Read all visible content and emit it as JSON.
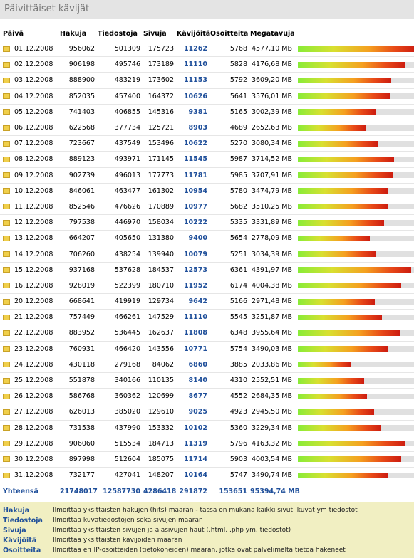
{
  "title": "Päivittäiset kävijät",
  "headers": [
    "Päivä",
    "Hakuja",
    "Tiedostoja",
    "Sivuja",
    "Kävijöitä",
    "Osoitteita",
    "Megatavuja"
  ],
  "rows": [
    {
      "date": "01.12.2008",
      "hakuja": "956062",
      "tiedostoja": "501309",
      "sivuja": "175723",
      "kavijoita": "11262",
      "osoitteita": "5768",
      "mb": "4577,10 MB",
      "mb_value": 4577.1
    },
    {
      "date": "02.12.2008",
      "hakuja": "906198",
      "tiedostoja": "495746",
      "sivuja": "173189",
      "kavijoita": "11110",
      "osoitteita": "5828",
      "mb": "4176,68 MB",
      "mb_value": 4176.68
    },
    {
      "date": "03.12.2008",
      "hakuja": "888900",
      "tiedostoja": "483219",
      "sivuja": "173602",
      "kavijoita": "11153",
      "osoitteita": "5792",
      "mb": "3609,20 MB",
      "mb_value": 3609.2
    },
    {
      "date": "04.12.2008",
      "hakuja": "852035",
      "tiedostoja": "457400",
      "sivuja": "164372",
      "kavijoita": "10626",
      "osoitteita": "5641",
      "mb": "3576,01 MB",
      "mb_value": 3576.01
    },
    {
      "date": "05.12.2008",
      "hakuja": "741403",
      "tiedostoja": "406855",
      "sivuja": "145316",
      "kavijoita": "9381",
      "osoitteita": "5165",
      "mb": "3002,39 MB",
      "mb_value": 3002.39
    },
    {
      "date": "06.12.2008",
      "hakuja": "622568",
      "tiedostoja": "377734",
      "sivuja": "125721",
      "kavijoita": "8903",
      "osoitteita": "4689",
      "mb": "2652,63 MB",
      "mb_value": 2652.63
    },
    {
      "date": "07.12.2008",
      "hakuja": "723667",
      "tiedostoja": "437549",
      "sivuja": "153496",
      "kavijoita": "10622",
      "osoitteita": "5270",
      "mb": "3080,34 MB",
      "mb_value": 3080.34
    },
    {
      "date": "08.12.2008",
      "hakuja": "889123",
      "tiedostoja": "493971",
      "sivuja": "171145",
      "kavijoita": "11545",
      "osoitteita": "5987",
      "mb": "3714,52 MB",
      "mb_value": 3714.52
    },
    {
      "date": "09.12.2008",
      "hakuja": "902739",
      "tiedostoja": "496013",
      "sivuja": "177773",
      "kavijoita": "11781",
      "osoitteita": "5985",
      "mb": "3707,91 MB",
      "mb_value": 3707.91
    },
    {
      "date": "10.12.2008",
      "hakuja": "846061",
      "tiedostoja": "463477",
      "sivuja": "161302",
      "kavijoita": "10954",
      "osoitteita": "5780",
      "mb": "3474,79 MB",
      "mb_value": 3474.79
    },
    {
      "date": "11.12.2008",
      "hakuja": "852546",
      "tiedostoja": "476626",
      "sivuja": "170889",
      "kavijoita": "10977",
      "osoitteita": "5682",
      "mb": "3510,25 MB",
      "mb_value": 3510.25
    },
    {
      "date": "12.12.2008",
      "hakuja": "797538",
      "tiedostoja": "446970",
      "sivuja": "158034",
      "kavijoita": "10222",
      "osoitteita": "5335",
      "mb": "3331,89 MB",
      "mb_value": 3331.89
    },
    {
      "date": "13.12.2008",
      "hakuja": "664207",
      "tiedostoja": "405650",
      "sivuja": "131380",
      "kavijoita": "9400",
      "osoitteita": "5654",
      "mb": "2778,09 MB",
      "mb_value": 2778.09
    },
    {
      "date": "14.12.2008",
      "hakuja": "706260",
      "tiedostoja": "438254",
      "sivuja": "139940",
      "kavijoita": "10079",
      "osoitteita": "5251",
      "mb": "3034,39 MB",
      "mb_value": 3034.39
    },
    {
      "date": "15.12.2008",
      "hakuja": "937168",
      "tiedostoja": "537628",
      "sivuja": "184537",
      "kavijoita": "12573",
      "osoitteita": "6361",
      "mb": "4391,97 MB",
      "mb_value": 4391.97
    },
    {
      "date": "16.12.2008",
      "hakuja": "928019",
      "tiedostoja": "522399",
      "sivuja": "180710",
      "kavijoita": "11952",
      "osoitteita": "6174",
      "mb": "4004,38 MB",
      "mb_value": 4004.38
    },
    {
      "date": "20.12.2008",
      "hakuja": "668641",
      "tiedostoja": "419919",
      "sivuja": "129734",
      "kavijoita": "9642",
      "osoitteita": "5166",
      "mb": "2971,48 MB",
      "mb_value": 2971.48
    },
    {
      "date": "21.12.2008",
      "hakuja": "757449",
      "tiedostoja": "466261",
      "sivuja": "147529",
      "kavijoita": "11110",
      "osoitteita": "5545",
      "mb": "3251,87 MB",
      "mb_value": 3251.87
    },
    {
      "date": "22.12.2008",
      "hakuja": "883952",
      "tiedostoja": "536445",
      "sivuja": "162637",
      "kavijoita": "11808",
      "osoitteita": "6348",
      "mb": "3955,64 MB",
      "mb_value": 3955.64
    },
    {
      "date": "23.12.2008",
      "hakuja": "760931",
      "tiedostoja": "466420",
      "sivuja": "143556",
      "kavijoita": "10771",
      "osoitteita": "5754",
      "mb": "3490,03 MB",
      "mb_value": 3490.03
    },
    {
      "date": "24.12.2008",
      "hakuja": "430118",
      "tiedostoja": "279168",
      "sivuja": "84062",
      "kavijoita": "6860",
      "osoitteita": "3885",
      "mb": "2033,86 MB",
      "mb_value": 2033.86
    },
    {
      "date": "25.12.2008",
      "hakuja": "551878",
      "tiedostoja": "340166",
      "sivuja": "110135",
      "kavijoita": "8140",
      "osoitteita": "4310",
      "mb": "2552,51 MB",
      "mb_value": 2552.51
    },
    {
      "date": "26.12.2008",
      "hakuja": "586768",
      "tiedostoja": "360362",
      "sivuja": "120699",
      "kavijoita": "8677",
      "osoitteita": "4552",
      "mb": "2684,35 MB",
      "mb_value": 2684.35
    },
    {
      "date": "27.12.2008",
      "hakuja": "626013",
      "tiedostoja": "385020",
      "sivuja": "129610",
      "kavijoita": "9025",
      "osoitteita": "4923",
      "mb": "2945,50 MB",
      "mb_value": 2945.5
    },
    {
      "date": "28.12.2008",
      "hakuja": "731538",
      "tiedostoja": "437990",
      "sivuja": "153332",
      "kavijoita": "10102",
      "osoitteita": "5360",
      "mb": "3229,34 MB",
      "mb_value": 3229.34
    },
    {
      "date": "29.12.2008",
      "hakuja": "906060",
      "tiedostoja": "515534",
      "sivuja": "184713",
      "kavijoita": "11319",
      "osoitteita": "5796",
      "mb": "4163,32 MB",
      "mb_value": 4163.32
    },
    {
      "date": "30.12.2008",
      "hakuja": "897998",
      "tiedostoja": "512604",
      "sivuja": "185075",
      "kavijoita": "11714",
      "osoitteita": "5903",
      "mb": "4003,54 MB",
      "mb_value": 4003.54
    },
    {
      "date": "31.12.2008",
      "hakuja": "732177",
      "tiedostoja": "427041",
      "sivuja": "148207",
      "kavijoita": "10164",
      "osoitteita": "5747",
      "mb": "3490,74 MB",
      "mb_value": 3490.74
    }
  ],
  "totals": {
    "label": "Yhteensä",
    "hakuja": "21748017",
    "tiedostoja": "12587730",
    "sivuja": "4286418",
    "kavijoita": "291872",
    "osoitteita": "153651",
    "mb": "95394,74 MB"
  },
  "legend": [
    {
      "term": "Hakuja",
      "desc": "Ilmoittaa yksittäisten hakujen (hits) määrän - tässä on mukana kaikki sivut, kuvat ym tiedostot"
    },
    {
      "term": "Tiedostoja",
      "desc": "Ilmoittaa kuvatiedostojen sekä sivujen määrän"
    },
    {
      "term": "Sivuja",
      "desc": "Ilmoittaa yksittäisten sivujen ja alasivujen haut (.html, .php ym. tiedostot)"
    },
    {
      "term": "Kävijöitä",
      "desc": "Ilmoittaa yksittäisten kävijöiden määrän"
    },
    {
      "term": "Osoitteita",
      "desc": "Ilmoittaa eri IP-osoitteiden (tietokoneiden) määrän, jotka ovat palvelimelta tietoa hakeneet"
    }
  ],
  "colors": {
    "accent": "#1f4f9a",
    "legend_bg": "#f1efc2",
    "bar_track": "#e0e0e0"
  }
}
